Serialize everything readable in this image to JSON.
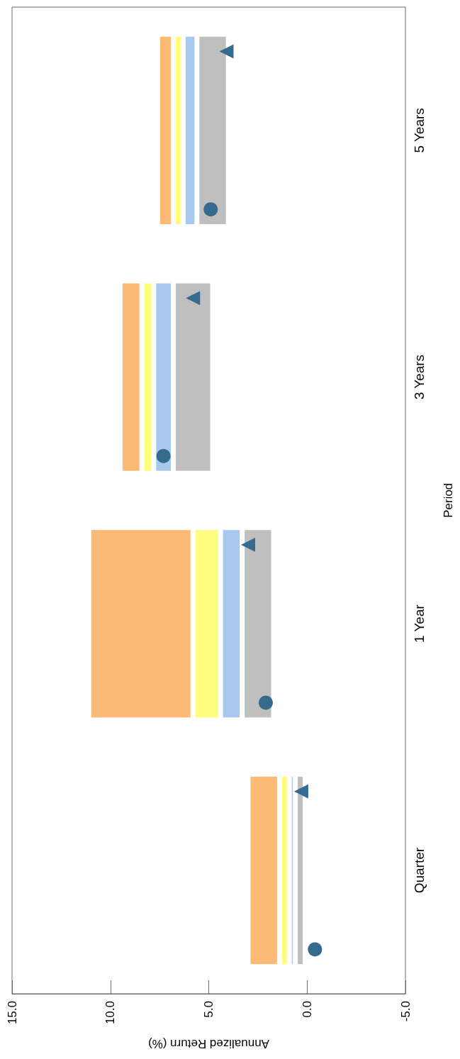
{
  "chart_data": {
    "type": "bar",
    "orientation": "horizontal",
    "xlabel": "Annualized Return (%)",
    "ylabel": "Period",
    "categories": [
      "5 Years",
      "3 Years",
      "1 Year",
      "Quarter"
    ],
    "series": [
      {
        "color": "#bfbfbf",
        "base": [
          4.0,
          4.8,
          1.7,
          0.1
        ],
        "values": [
          1.6,
          2.0,
          1.6,
          0.5
        ]
      },
      {
        "color": "#a7c9ee",
        "base": [
          5.6,
          6.8,
          3.3,
          0.6
        ],
        "values": [
          0.7,
          1.0,
          1.1,
          0.3
        ]
      },
      {
        "color": "#fffd7f",
        "base": [
          6.3,
          7.8,
          4.4,
          0.9
        ],
        "values": [
          0.5,
          0.6,
          1.4,
          0.5
        ]
      },
      {
        "color": "#fdb976",
        "base": [
          6.8,
          8.4,
          5.8,
          1.4
        ],
        "values": [
          0.8,
          1.1,
          5.3,
          1.6
        ]
      },
      {
        "type": "scatter",
        "marker": "circle",
        "color": "#356b8e",
        "x": [
          "5 Years",
          "3 Years",
          "1 Year",
          "Quarter"
        ],
        "values": [
          4.9,
          7.3,
          2.1,
          -0.4
        ]
      },
      {
        "type": "scatter",
        "marker": "triangle",
        "color": "#356b8e",
        "x": [
          "5 Years",
          "3 Years",
          "1 Year",
          "Quarter"
        ],
        "values": [
          4.1,
          5.8,
          3.0,
          0.3
        ]
      }
    ],
    "xlim": [
      15,
      -5
    ],
    "xticks": [
      {
        "value": 15,
        "label": "15.0"
      },
      {
        "value": 10,
        "label": "10.0"
      },
      {
        "value": 5,
        "label": "5.0"
      },
      {
        "value": 0,
        "label": "0.0"
      },
      {
        "value": -5,
        "label": "-5.0"
      }
    ],
    "grid": false
  }
}
